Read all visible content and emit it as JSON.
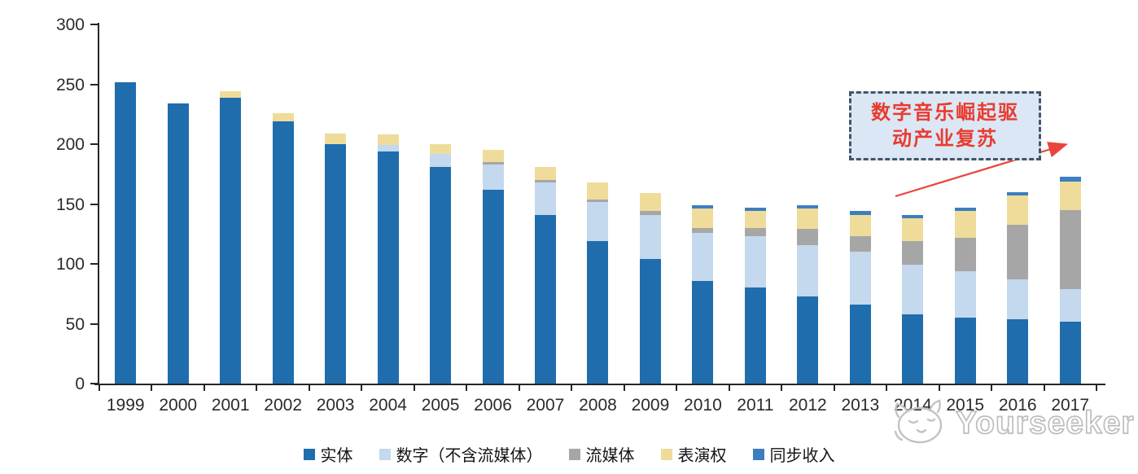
{
  "chart_data": {
    "type": "bar",
    "stacked": true,
    "categories": [
      "1999",
      "2000",
      "2001",
      "2002",
      "2003",
      "2004",
      "2005",
      "2006",
      "2007",
      "2008",
      "2009",
      "2010",
      "2011",
      "2012",
      "2013",
      "2014",
      "2015",
      "2016",
      "2017"
    ],
    "series": [
      {
        "key": "physical",
        "name": "实体",
        "color": "#1F6DAD",
        "values": [
          252,
          234,
          239,
          219,
          200,
          194,
          181,
          162,
          141,
          119,
          104,
          86,
          80,
          73,
          66,
          58,
          55,
          54,
          52
        ]
      },
      {
        "key": "digital-excl-streaming",
        "name": "数字（不含流媒体）",
        "color": "#C4D8EE",
        "values": [
          0,
          0,
          0,
          0,
          0,
          5,
          11,
          21,
          27,
          33,
          37,
          40,
          43,
          43,
          44,
          41,
          39,
          33,
          27
        ]
      },
      {
        "key": "streaming",
        "name": "流媒体",
        "color": "#A6A6A6",
        "values": [
          0,
          0,
          0,
          0,
          0,
          0,
          0,
          2,
          2,
          2,
          3,
          4,
          7,
          13,
          13,
          20,
          28,
          46,
          66
        ]
      },
      {
        "key": "performance-rights",
        "name": "表演权",
        "color": "#EFDC9B",
        "values": [
          0,
          0,
          5,
          7,
          9,
          9,
          8,
          10,
          11,
          14,
          15,
          16,
          14,
          17,
          18,
          19,
          22,
          24,
          24
        ]
      },
      {
        "key": "sync",
        "name": "同步收入",
        "color": "#3D7EC1",
        "values": [
          0,
          0,
          0,
          0,
          0,
          0,
          0,
          0,
          0,
          0,
          0,
          3,
          3,
          3,
          3,
          3,
          3,
          3,
          4
        ]
      }
    ],
    "ylim": [
      0,
      300
    ],
    "yticks": [
      0,
      50,
      100,
      150,
      200,
      250,
      300
    ],
    "grid": false,
    "legend_position": "bottom"
  },
  "annotation": {
    "line1": "数字音乐崛起驱",
    "line2": "动产业复苏",
    "full_text": "数字音乐崛起驱动产业复苏",
    "text_color": "#E93B30",
    "box_fill": "#DBE7F4",
    "box_border": "#44546A",
    "arrow_color": "#E9453C"
  },
  "watermark": {
    "brand": "Yourseeker",
    "icon": "cat-logo-icon",
    "color": "#BDBDBD"
  },
  "colors": {
    "axis": "#262626",
    "tick_label": "#2B2B2B"
  }
}
